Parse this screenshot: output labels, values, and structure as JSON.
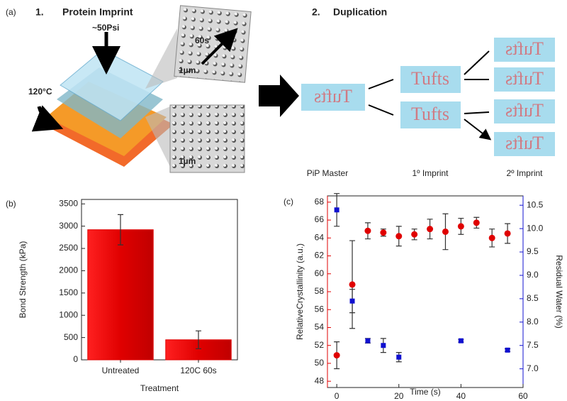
{
  "panels": {
    "a": "(a)",
    "b": "(b)",
    "c": "(c)"
  },
  "diagram": {
    "step1_number": "1.",
    "step1_title": "Protein Imprint",
    "step2_number": "2.",
    "step2_title": "Duplication",
    "pressure": "~50Psi",
    "temperature": "120°C",
    "time": "60s",
    "scale_top": "1µm",
    "scale_bottom": "1µm",
    "stamps": [
      "Tufts",
      "Tufts",
      "Tufts",
      "Tufts",
      "Tufts",
      "Tufts",
      "Tufts"
    ],
    "labels": [
      "PiP Master",
      "1º Imprint",
      "2º Imprint"
    ]
  },
  "chart_data": [
    {
      "type": "bar",
      "x_label": "Treatment",
      "y_label": "Bond Strength (kPa)",
      "categories": [
        "Untreated",
        "120C 60s"
      ],
      "values": [
        2920,
        450
      ],
      "errors": [
        340,
        200
      ],
      "color": "#e00000",
      "ylim": [
        0,
        3600
      ],
      "yticks": [
        0,
        500,
        1000,
        1500,
        2000,
        2500,
        3000,
        3500
      ]
    },
    {
      "type": "scatter",
      "x_label": "Time (s)",
      "y_label": "RelativeCrystallinity (a.u.)",
      "y2_label": "Residual Water (%)",
      "xlim": [
        -3,
        60
      ],
      "xticks": [
        0,
        20,
        40,
        60
      ],
      "ylim": [
        47.3,
        68.7
      ],
      "yticks": [
        48,
        50,
        52,
        54,
        56,
        58,
        60,
        62,
        64,
        66,
        68
      ],
      "y2lim": [
        6.6,
        10.7
      ],
      "y2ticks": [
        {
          "value": 7,
          "label": "7.0"
        },
        7.5,
        {
          "value": 8,
          "label": "8.0"
        },
        8.5,
        {
          "value": 9,
          "label": "9.0"
        },
        9.5,
        {
          "value": 10,
          "label": "10.0"
        },
        10.5
      ],
      "series": [
        {
          "color": "#e00000",
          "marker": "circle",
          "x": [
            0,
            5,
            10,
            15,
            20,
            25,
            30,
            35,
            40,
            45,
            50,
            55
          ],
          "values": [
            50.9,
            58.8,
            64.8,
            64.6,
            64.2,
            64.4,
            65.0,
            64.7,
            65.3,
            65.7,
            64.0,
            64.5
          ],
          "errors": [
            1.5,
            4.9,
            0.9,
            0.4,
            1.1,
            0.6,
            1.1,
            2.0,
            0.9,
            0.6,
            1.0,
            1.1
          ]
        },
        {
          "axis": "y2",
          "color": "#1010d0",
          "marker": "square",
          "x": [
            0,
            5,
            10,
            15,
            20,
            40,
            55
          ],
          "values": [
            10.4,
            8.45,
            7.6,
            7.5,
            7.25,
            7.6,
            7.4
          ],
          "errors": [
            0.35,
            0.25,
            0.05,
            0.15,
            0.1,
            0.03,
            0.03
          ]
        }
      ]
    }
  ]
}
